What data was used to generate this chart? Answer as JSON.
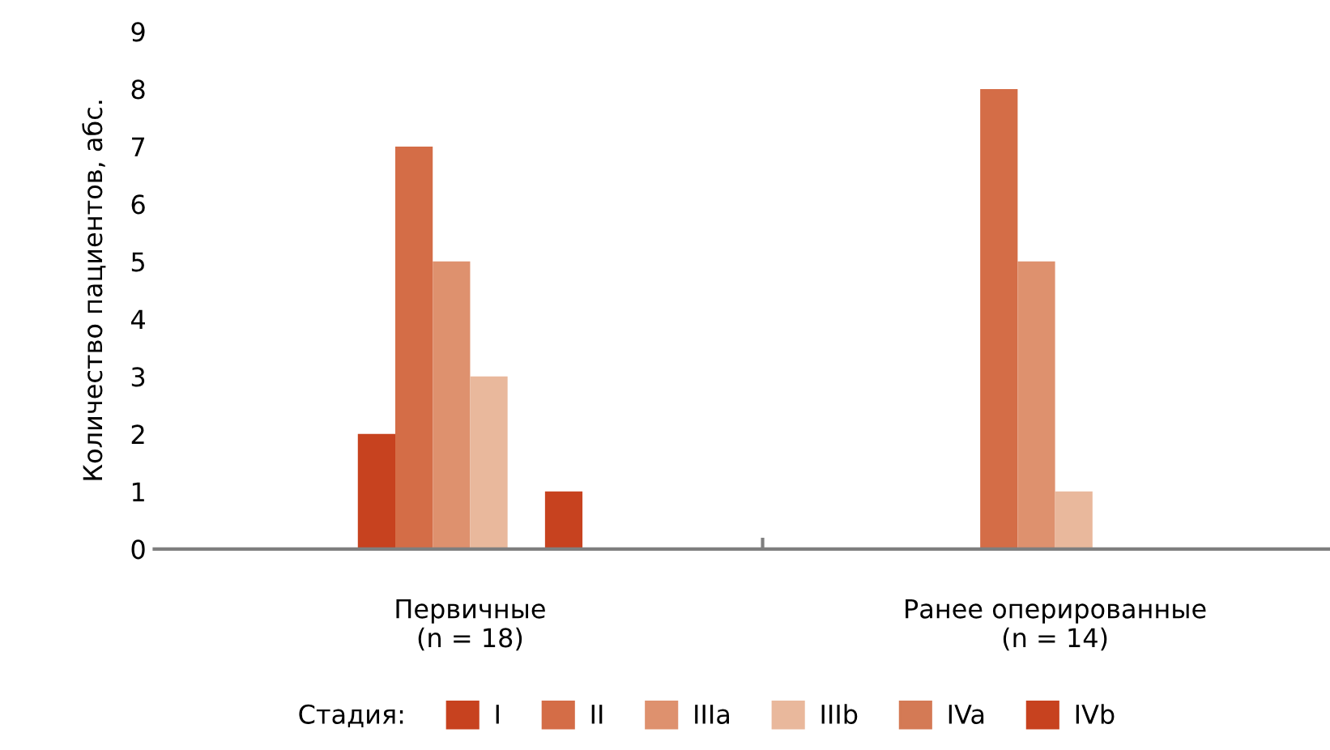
{
  "chart_data": {
    "type": "bar",
    "ylabel": "Количество пациентов, абс.",
    "categories": [
      "Первичные\n(n = 18)",
      "Ранее оперированные\n(n = 14)"
    ],
    "series": [
      {
        "name": "I",
        "color": "#c7421f",
        "values": [
          2,
          0
        ]
      },
      {
        "name": "II",
        "color": "#d46d47",
        "values": [
          7,
          8
        ]
      },
      {
        "name": "IIIa",
        "color": "#de916e",
        "values": [
          5,
          5
        ]
      },
      {
        "name": "IIIb",
        "color": "#e9b89c",
        "values": [
          3,
          1
        ]
      },
      {
        "name": "IVa",
        "color": "#d47a55",
        "values": [
          0,
          0
        ]
      },
      {
        "name": "IVb",
        "color": "#c7421f",
        "values": [
          1,
          0
        ]
      }
    ],
    "legend_title": "Стадия:",
    "legend": "bottom",
    "ylim": [
      0,
      9
    ],
    "yticks": [
      0,
      1,
      2,
      3,
      4,
      5,
      6,
      7,
      8,
      9
    ],
    "grid": false
  }
}
